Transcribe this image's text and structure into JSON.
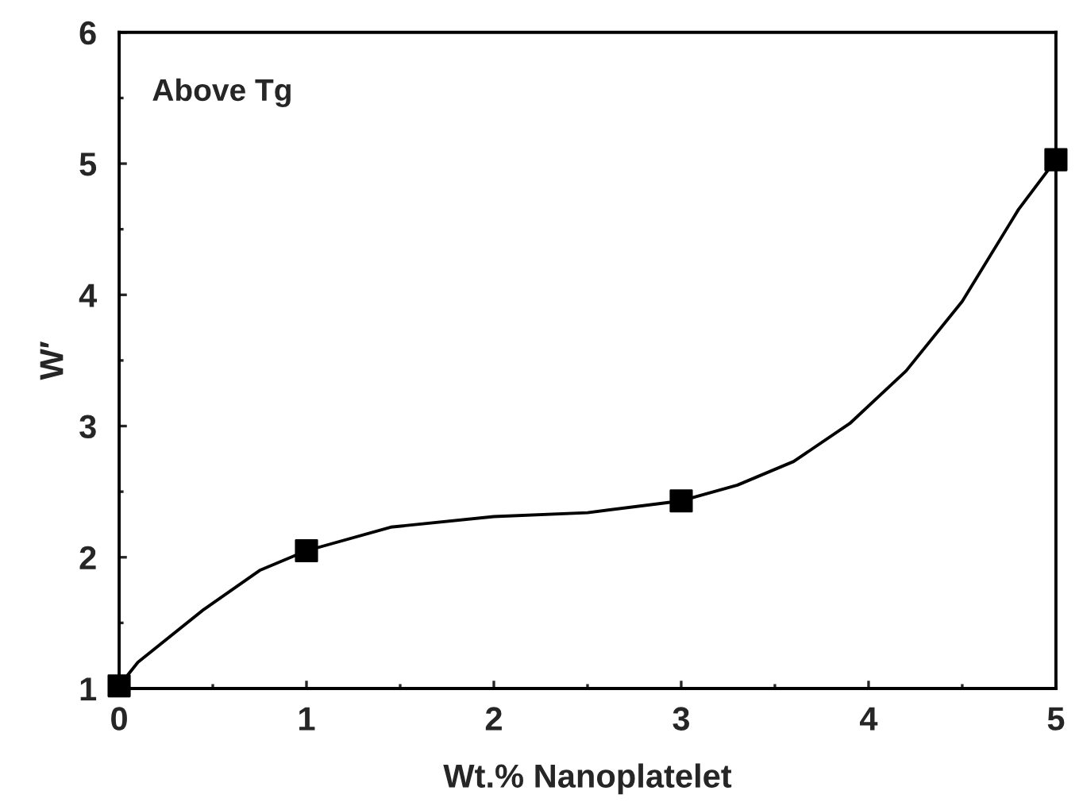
{
  "chart_data": {
    "type": "line",
    "xlabel": "Wt.% Nanoplatelet",
    "ylabel": "W′",
    "annotations": [
      "Above Tg"
    ],
    "xlim": [
      0,
      5
    ],
    "ylim": [
      1,
      6
    ],
    "xticks": [
      0,
      1,
      2,
      3,
      4,
      5
    ],
    "yticks": [
      1,
      2,
      3,
      4,
      5,
      6
    ],
    "grid": false,
    "legend": false,
    "series": [
      {
        "color": "#000000",
        "marker": "none",
        "line_style": "solid",
        "x": [
          0,
          0.1,
          0.45,
          0.75,
          1,
          1.45,
          2,
          2.5,
          3,
          3.3,
          3.6,
          3.9,
          4.2,
          4.5,
          4.8,
          5
        ],
        "values": [
          1.02,
          1.2,
          1.6,
          1.9,
          2.05,
          2.23,
          2.31,
          2.34,
          2.43,
          2.55,
          2.73,
          3.02,
          3.42,
          3.95,
          4.65,
          5.03
        ]
      },
      {
        "type": "scatter",
        "color": "#000000",
        "marker": "square",
        "x": [
          0,
          1,
          3,
          5
        ],
        "values": [
          1.02,
          2.05,
          2.43,
          5.03
        ]
      }
    ]
  }
}
